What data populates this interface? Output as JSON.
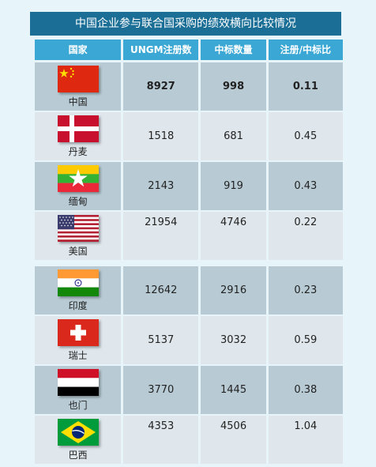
{
  "title": "中国企业参与联合国采购的绩效横向比较情况",
  "headers": [
    "国家",
    "UNGM注册数",
    "中标数量",
    "注册/中标比"
  ],
  "rows": [
    {
      "country": "中国",
      "flag": "china-flag",
      "registered": "8927",
      "won": "998",
      "ratio": "0.11"
    },
    {
      "country": "丹麦",
      "flag": "denmark-flag",
      "registered": "1518",
      "won": "681",
      "ratio": "0.45"
    },
    {
      "country": "缅甸",
      "flag": "myanmar-flag",
      "registered": "2143",
      "won": "919",
      "ratio": "0.43"
    },
    {
      "country": "美国",
      "flag": "usa-flag",
      "registered": "21954",
      "won": "4746",
      "ratio": "0.22"
    },
    {
      "country": "印度",
      "flag": "india-flag",
      "registered": "12642",
      "won": "2916",
      "ratio": "0.23"
    },
    {
      "country": "瑞士",
      "flag": "switzerland-flag",
      "registered": "5137",
      "won": "3032",
      "ratio": "0.59"
    },
    {
      "country": "也门",
      "flag": "yemen-flag",
      "registered": "3770",
      "won": "1445",
      "ratio": "0.38"
    },
    {
      "country": "巴西",
      "flag": "brazil-flag",
      "registered": "4353",
      "won": "4506",
      "ratio": "1.04"
    }
  ],
  "colors": {
    "title_bg": "#1b6f97",
    "header_bg": "#3aa7d4",
    "row_dark": "#b8cbd4",
    "row_light": "#dfe7ec",
    "page_bg": "#e7f5fa"
  }
}
